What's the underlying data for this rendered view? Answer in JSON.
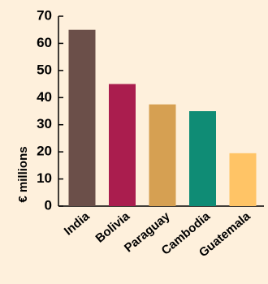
{
  "chart_data": {
    "type": "bar",
    "categories": [
      "India",
      "Bolivia",
      "Paraguay",
      "Cambodia",
      "Guatemala"
    ],
    "values": [
      65,
      45,
      37.5,
      35,
      19.5
    ],
    "colors": [
      "#6b4f49",
      "#aa1d4e",
      "#d6a052",
      "#0f8c75",
      "#ffc466"
    ],
    "ylabel": "€ millions",
    "ylim": [
      0,
      70
    ],
    "yticks": [
      "0",
      "10",
      "20",
      "30",
      "40",
      "50",
      "60",
      "70"
    ],
    "grid": false,
    "background": "#fef0dc"
  }
}
